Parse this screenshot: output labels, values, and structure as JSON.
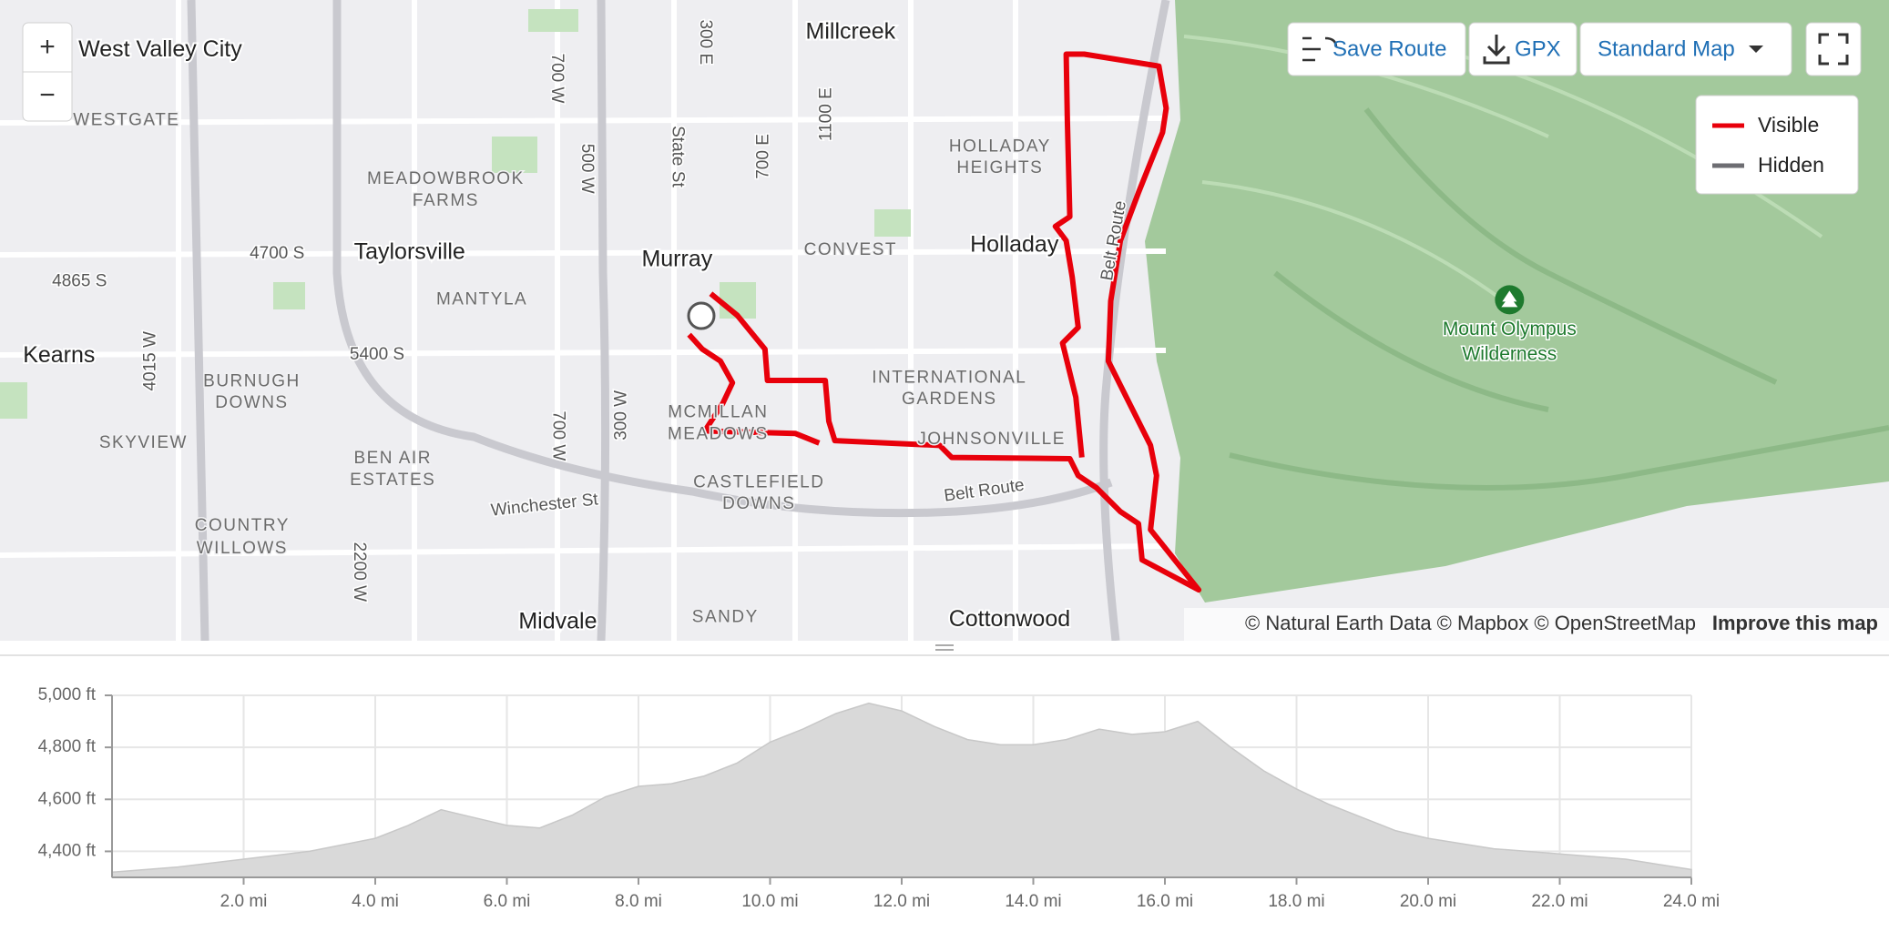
{
  "map": {
    "labels": [
      "West Valley City",
      "WESTGATE",
      "Millcreek",
      "HOLLADAY",
      "HEIGHTS",
      "MEADOWBROOK",
      "FARMS",
      "Taylorsville",
      "Murray",
      "CONVEST",
      "Holladay",
      "4700 S",
      "4865 S",
      "MANTYLA",
      "Kearns",
      "5400 S",
      "BURNUGH",
      "DOWNS",
      "INTERNATIONAL",
      "GARDENS",
      "MCMILLAN",
      "MEADOWS",
      "JOHNSONVILLE",
      "SKYVIEW",
      "BEN AIR",
      "ESTATES",
      "CASTLEFIELD",
      "DOWNS",
      "Winchester St",
      "Belt Route",
      "COUNTRY",
      "WILLOWS",
      "Midvale",
      "SANDY",
      "Cottonwood",
      "Mount Olympus",
      "Wilderness",
      "700 W",
      "300 E",
      "500 W",
      "State St",
      "700 E",
      "1100 E",
      "Belt Route",
      "4015 W",
      "700 W",
      "300 W",
      "2200 W"
    ],
    "zoom_in": "+",
    "zoom_out": "−",
    "buttons": [
      "Save Route",
      "GPX",
      "Standard Map"
    ],
    "legend": [
      "Visible",
      "Hidden"
    ],
    "attribution": "© Natural Earth Data © Mapbox © OpenStreetMap",
    "improve": "Improve this map"
  },
  "chart_data": {
    "type": "area",
    "x": [
      0,
      1,
      2,
      3,
      4,
      4.5,
      5,
      5.5,
      6,
      6.5,
      7,
      7.5,
      8,
      8.5,
      9,
      9.5,
      10,
      10.5,
      11,
      11.5,
      12,
      12.5,
      13,
      13.5,
      14,
      14.5,
      15,
      15.5,
      16,
      16.5,
      17,
      17.5,
      18,
      18.5,
      19,
      19.5,
      20,
      20.5,
      21,
      21.5,
      22,
      22.5,
      23,
      23.5,
      24
    ],
    "values": [
      4320,
      4340,
      4370,
      4400,
      4450,
      4500,
      4560,
      4530,
      4500,
      4490,
      4540,
      4610,
      4650,
      4660,
      4690,
      4740,
      4820,
      4870,
      4930,
      4970,
      4940,
      4880,
      4830,
      4810,
      4810,
      4830,
      4870,
      4850,
      4860,
      4900,
      4800,
      4710,
      4640,
      4580,
      4530,
      4480,
      4450,
      4430,
      4410,
      4400,
      4390,
      4380,
      4370,
      4350,
      4330
    ],
    "color": "#d9d9d9",
    "xlim": [
      0,
      24
    ],
    "ylim": [
      4300,
      5000
    ],
    "xticks": [
      {
        "value": 2,
        "label": "2.0 mi"
      },
      {
        "value": 4,
        "label": "4.0 mi"
      },
      {
        "value": 6,
        "label": "6.0 mi"
      },
      {
        "value": 8,
        "label": "8.0 mi"
      },
      {
        "value": 10,
        "label": "10.0 mi"
      },
      {
        "value": 12,
        "label": "12.0 mi"
      },
      {
        "value": 14,
        "label": "14.0 mi"
      },
      {
        "value": 16,
        "label": "16.0 mi"
      },
      {
        "value": 18,
        "label": "18.0 mi"
      },
      {
        "value": 20,
        "label": "20.0 mi"
      },
      {
        "value": 22,
        "label": "22.0 mi"
      },
      {
        "value": 24,
        "label": "24.0 mi"
      }
    ],
    "yticks": [
      {
        "value": 4400,
        "label": "4,400 ft"
      },
      {
        "value": 4600,
        "label": "4,600 ft"
      },
      {
        "value": 4800,
        "label": "4,800 ft"
      },
      {
        "value": 5000,
        "label": "5,000 ft"
      }
    ],
    "grid": true
  }
}
